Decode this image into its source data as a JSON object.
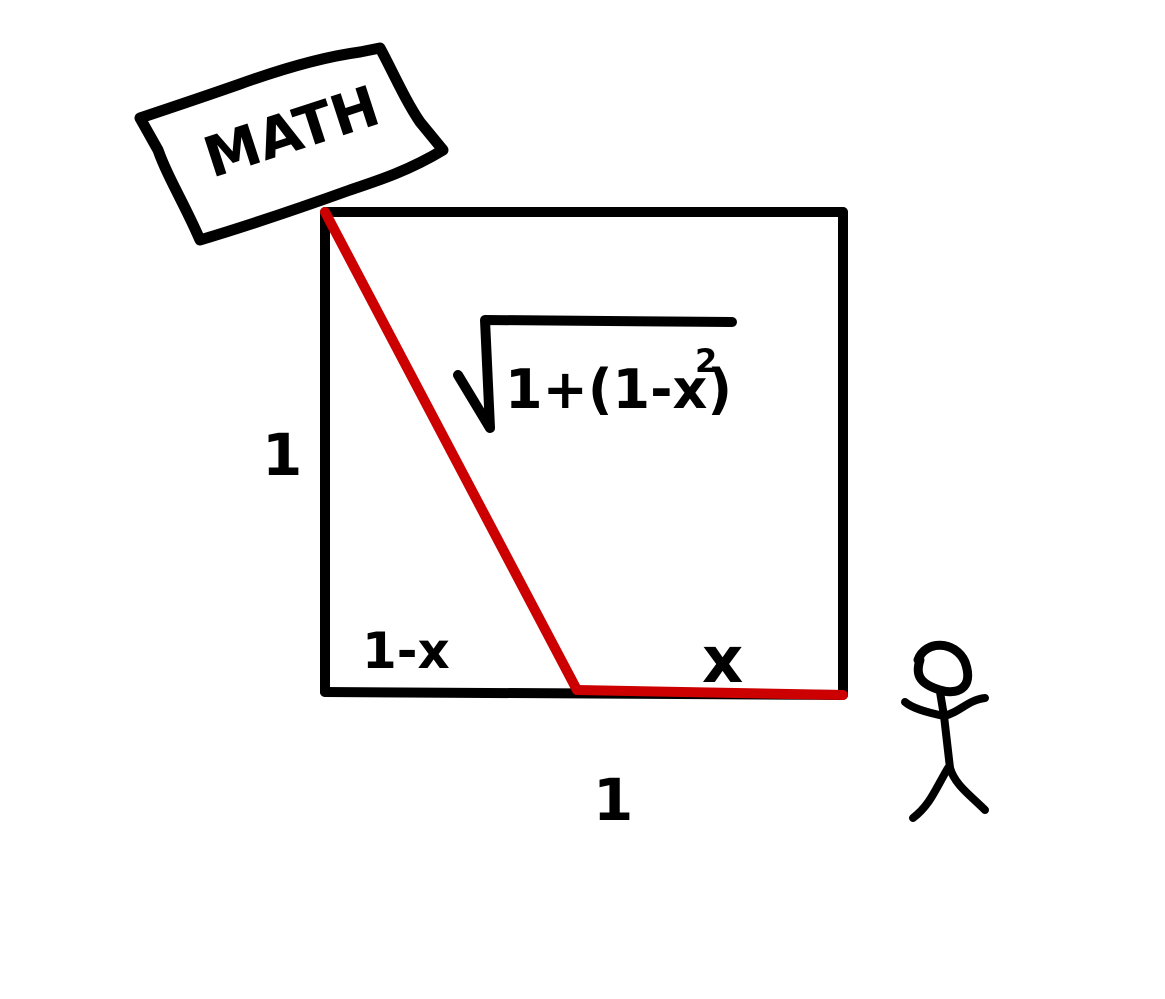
{
  "sign": {
    "text": "MATH"
  },
  "labels": {
    "left_side": "1",
    "bottom_side": "1",
    "bottom_left_segment": "1-x",
    "bottom_right_segment": "x",
    "radicand_main": "1+(1-x)",
    "radicand_exponent": "2"
  },
  "colors": {
    "ink": "#000000",
    "path": "#cc0000",
    "background": "#ffffff"
  }
}
